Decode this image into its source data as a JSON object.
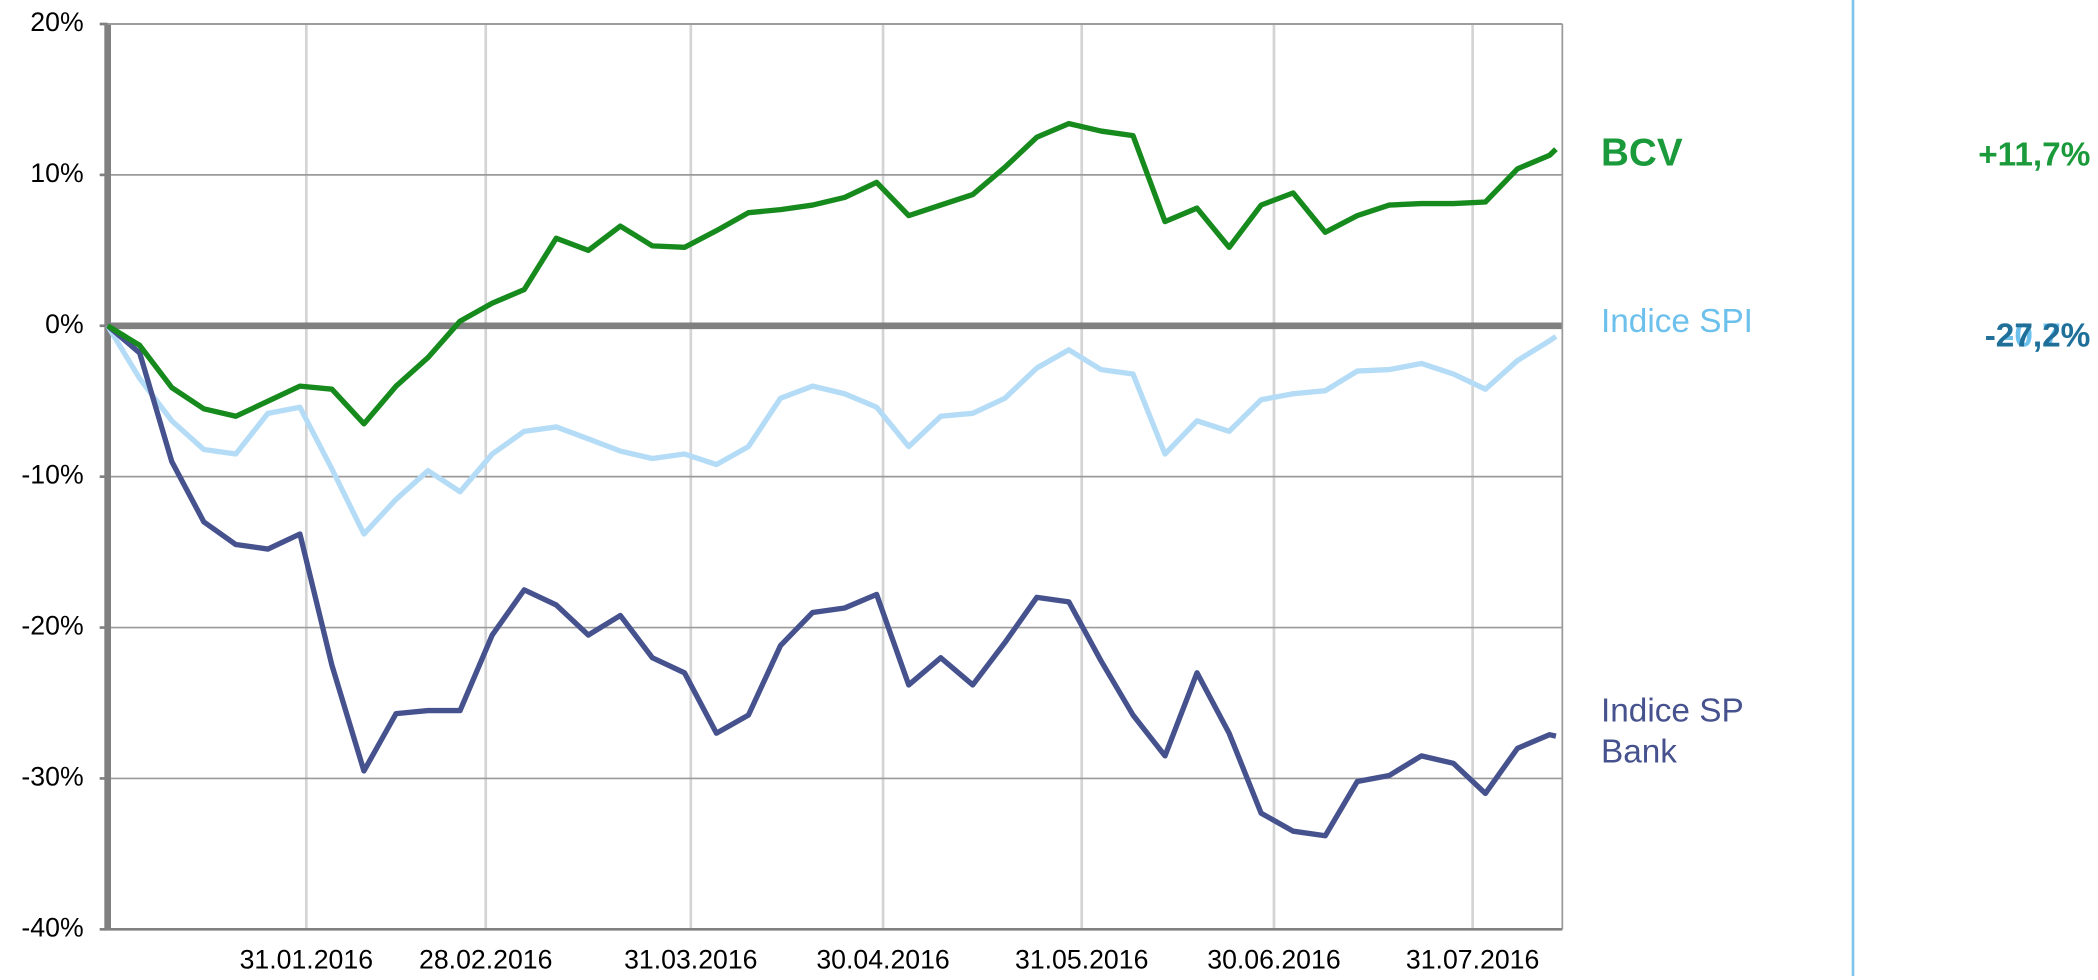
{
  "chart_data": {
    "type": "line",
    "x": [
      "31.12.2015",
      "05.01.2016",
      "10.01.2016",
      "15.01.2016",
      "20.01.2016",
      "25.01.2016",
      "30.01.2016",
      "04.02.2016",
      "09.02.2016",
      "14.02.2016",
      "19.02.2016",
      "24.02.2016",
      "29.02.2016",
      "05.03.2016",
      "10.03.2016",
      "15.03.2016",
      "20.03.2016",
      "25.03.2016",
      "30.03.2016",
      "04.04.2016",
      "09.04.2016",
      "14.04.2016",
      "19.04.2016",
      "24.04.2016",
      "29.04.2016",
      "04.05.2016",
      "09.05.2016",
      "14.05.2016",
      "19.05.2016",
      "24.05.2016",
      "29.05.2016",
      "03.06.2016",
      "08.06.2016",
      "13.06.2016",
      "18.06.2016",
      "23.06.2016",
      "28.06.2016",
      "03.07.2016",
      "08.07.2016",
      "13.07.2016",
      "18.07.2016",
      "23.07.2016",
      "28.07.2016",
      "02.08.2016",
      "07.08.2016",
      "12.08.2016",
      "13.08.2016"
    ],
    "series": [
      {
        "name": "BCV",
        "color": "#168a1c",
        "label_color": "#1a9a3a",
        "final_label": "+11,7%",
        "values": [
          0,
          -1.3,
          -4.1,
          -5.5,
          -6.0,
          -5.0,
          -4.0,
          -4.2,
          -6.5,
          -4.0,
          -2.1,
          0.3,
          1.5,
          2.4,
          5.8,
          5.0,
          6.6,
          5.3,
          5.2,
          6.3,
          7.5,
          7.7,
          8.0,
          8.5,
          9.5,
          7.3,
          8.0,
          8.7,
          10.5,
          12.5,
          13.4,
          12.9,
          12.6,
          6.9,
          7.8,
          5.2,
          8.0,
          8.8,
          6.2,
          7.3,
          8.0,
          8.1,
          8.1,
          8.2,
          10.4,
          11.3,
          11.7
        ]
      },
      {
        "name": "Indice SPI",
        "color": "#b5dcf6",
        "label_color": "#6cc0ec",
        "final_label": "-0,7%",
        "values": [
          0,
          -3.5,
          -6.3,
          -8.2,
          -8.5,
          -5.8,
          -5.4,
          -9.5,
          -13.8,
          -11.5,
          -9.6,
          -11.0,
          -8.5,
          -7.0,
          -6.7,
          -7.5,
          -8.3,
          -8.8,
          -8.5,
          -9.2,
          -8.0,
          -4.8,
          -4.0,
          -4.5,
          -5.4,
          -8.0,
          -6.0,
          -5.8,
          -4.8,
          -2.8,
          -1.6,
          -2.9,
          -3.2,
          -8.5,
          -6.3,
          -7.0,
          -4.9,
          -4.5,
          -4.3,
          -3.0,
          -2.9,
          -2.5,
          -3.2,
          -4.2,
          -2.3,
          -1.0,
          -0.7
        ]
      },
      {
        "name": "Indice SP Bank",
        "color": "#46528e",
        "label_color": "#1f6f99",
        "final_label": "-27,2%",
        "values": [
          0,
          -1.8,
          -9.0,
          -13.0,
          -14.5,
          -14.8,
          -13.8,
          -22.5,
          -29.5,
          -25.7,
          -25.5,
          -25.5,
          -20.5,
          -17.5,
          -18.5,
          -20.5,
          -19.2,
          -22.0,
          -23.0,
          -27.0,
          -25.8,
          -21.2,
          -19.0,
          -18.7,
          -17.8,
          -23.8,
          -22.0,
          -23.8,
          -21.0,
          -18.0,
          -18.3,
          -22.2,
          -25.8,
          -28.5,
          -23.0,
          -27.0,
          -32.3,
          -33.5,
          -33.8,
          -30.2,
          -29.8,
          -28.5,
          -29.0,
          -31.0,
          -28.0,
          -27.1,
          -27.2
        ]
      }
    ],
    "xlim": [
      "31.12.2015",
      "14.08.2016"
    ],
    "xticks": [
      "31.01.2016",
      "28.02.2016",
      "31.03.2016",
      "30.04.2016",
      "31.05.2016",
      "30.06.2016",
      "31.07.2016"
    ],
    "ylim": [
      -40,
      20
    ],
    "yticks": [
      {
        "value": -40,
        "label": "-40%"
      },
      {
        "value": -30,
        "label": "-30%"
      },
      {
        "value": -20,
        "label": "-20%"
      },
      {
        "value": -10,
        "label": "-10%"
      },
      {
        "value": 0,
        "label": "0%"
      },
      {
        "value": 10,
        "label": "10%"
      },
      {
        "value": 20,
        "label": "20%"
      }
    ],
    "grid": true
  }
}
